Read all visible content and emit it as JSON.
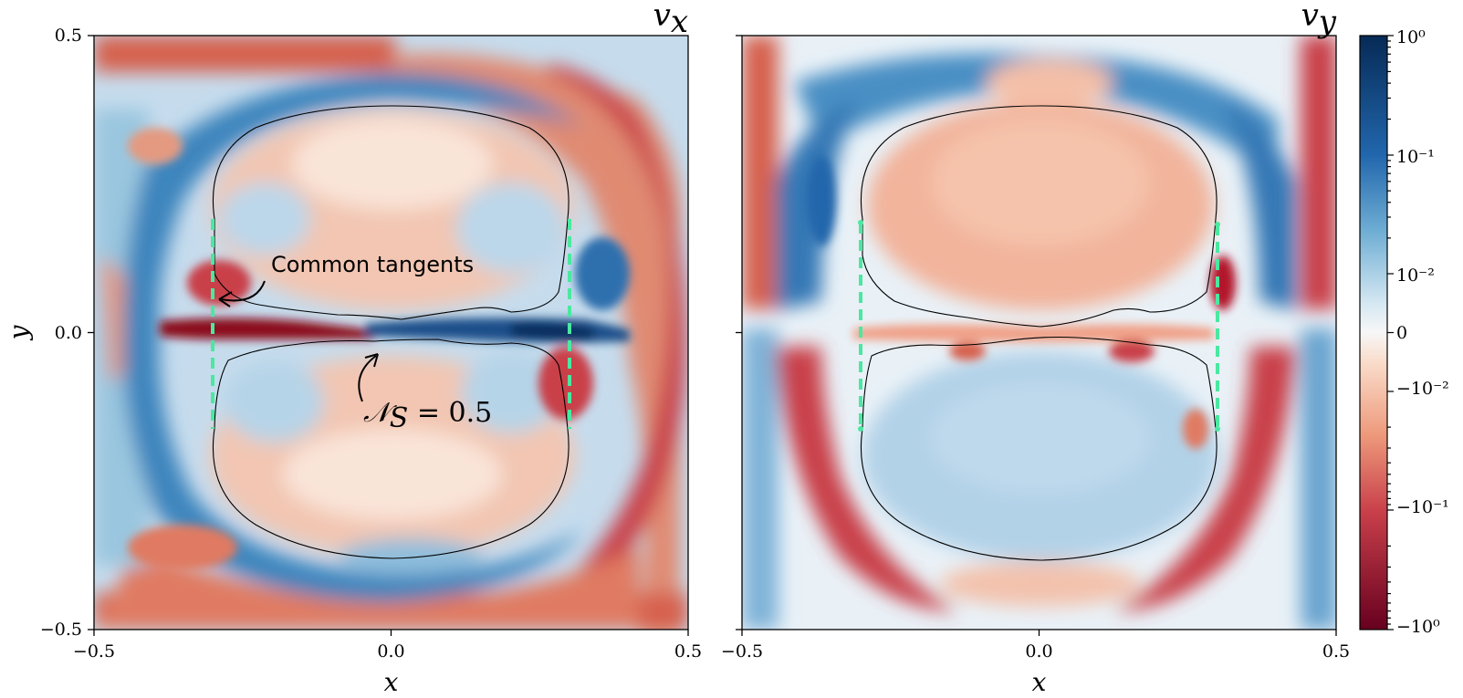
{
  "chart_data": [
    {
      "type": "heatmap",
      "panel": "left",
      "title": "v_x",
      "xlabel": "x",
      "ylabel": "y",
      "xlim": [
        -0.5,
        0.5
      ],
      "ylim": [
        -0.5,
        0.5
      ],
      "xticks": [
        "−0.5",
        "0.0",
        "0.5"
      ],
      "yticks": [
        "0.5",
        "0.0",
        "−0.5"
      ],
      "tangent_lines": [
        {
          "x": -0.3,
          "y_range": [
            -0.16,
            0.18
          ]
        },
        {
          "x": 0.3,
          "y_range": [
            -0.16,
            0.18
          ]
        }
      ],
      "annotations": [
        {
          "text": "Common tangents"
        },
        {
          "text": "𝒩_S = 0.5"
        }
      ],
      "contour_level": 0.5
    },
    {
      "type": "heatmap",
      "panel": "right",
      "title": "v_y",
      "xlabel": "x",
      "xlim": [
        -0.5,
        0.5
      ],
      "ylim": [
        -0.5,
        0.5
      ],
      "xticks": [
        "−0.5",
        "0.0",
        "0.5"
      ],
      "tangent_lines": [
        {
          "x": -0.3,
          "y_range": [
            -0.16,
            0.18
          ]
        },
        {
          "x": 0.3,
          "y_range": [
            -0.16,
            0.18
          ]
        }
      ],
      "contour_level": 0.5
    }
  ],
  "colorbar": {
    "scale": "symlog",
    "colormap": "RdBu",
    "ticks": [
      "10⁰",
      "10⁻¹",
      "10⁻²",
      "0",
      "−10⁻²",
      "−10⁻¹",
      "−10⁰"
    ],
    "range": [
      -1,
      1
    ]
  },
  "labels": {
    "left_title": "v",
    "left_sub": "x",
    "right_title": "v",
    "right_sub": "y",
    "x_label": "x",
    "y_label": "y",
    "common_tangents": "Common tangents",
    "ns_symbol": "𝒩",
    "ns_sub": "S",
    "ns_value": " = 0.5"
  },
  "colors": {
    "tangent": "#4ae8a0",
    "red_dark": "#8b0a1f",
    "red": "#d6604d",
    "red_light": "#f4a582",
    "white": "#f7f7f7",
    "blue_light": "#92c5de",
    "blue": "#4393c3",
    "blue_dark": "#0b3b6e"
  }
}
